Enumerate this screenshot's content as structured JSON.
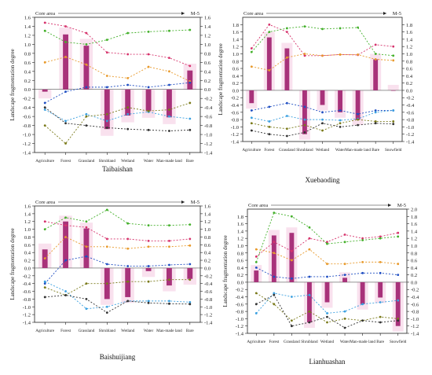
{
  "chart_data": [
    {
      "type": "bar",
      "title": "Taibaishan",
      "ylabel": "Landscape fragmentation degree",
      "corner_left": "Core area",
      "corner_right": "M-5",
      "ylim": [
        -1.4,
        1.6
      ],
      "yticks": [
        -1.4,
        -1.2,
        -1.0,
        -0.8,
        -0.6,
        -0.4,
        -0.2,
        0.0,
        0.2,
        0.4,
        0.6,
        0.8,
        1.0,
        1.2,
        1.4,
        1.6
      ],
      "right_ylim": [
        -1.4,
        1.6
      ],
      "right_yticks": [
        -1.4,
        -1.2,
        -1.0,
        -0.8,
        -0.6,
        -0.4,
        -0.2,
        0.0,
        0.2,
        0.4,
        0.6,
        0.8,
        1.0,
        1.2,
        1.4,
        1.6
      ],
      "categories": [
        "Agriculture",
        "Forest",
        "Grassland",
        "Shrubland",
        "Wetland",
        "Water",
        "Man-made land",
        "Bare"
      ],
      "values": [
        -0.05,
        1.22,
        0.97,
        -0.88,
        -0.58,
        -0.48,
        -0.62,
        0.42
      ],
      "lines": [
        {
          "color": "#d6336c",
          "values": [
            1.48,
            1.4,
            1.25,
            0.82,
            0.78,
            0.78,
            0.7,
            0.52
          ]
        },
        {
          "color": "#43b02a",
          "values": [
            1.3,
            1.05,
            1.0,
            1.1,
            1.25,
            1.28,
            1.3,
            1.32
          ]
        },
        {
          "color": "#e89a2c",
          "values": [
            0.6,
            0.72,
            0.55,
            0.3,
            0.25,
            0.5,
            0.4,
            0.18
          ]
        },
        {
          "color": "#1f4ec2",
          "values": [
            -0.3,
            -0.05,
            0.05,
            0.05,
            0.1,
            0.05,
            0.1,
            0.15
          ]
        },
        {
          "color": "#3aa0e0",
          "values": [
            -0.45,
            -0.7,
            -0.55,
            -0.7,
            -0.55,
            -0.5,
            -0.6,
            -0.65
          ]
        },
        {
          "color": "#7a7a1a",
          "values": [
            -0.8,
            -1.2,
            -0.6,
            -0.55,
            -0.4,
            -0.48,
            -0.45,
            -0.3
          ]
        },
        {
          "color": "#333333",
          "values": [
            -0.4,
            -0.75,
            -0.8,
            -0.85,
            -0.88,
            -0.9,
            -0.92,
            -0.9
          ]
        }
      ]
    },
    {
      "type": "bar",
      "title": "Xuebaoding",
      "ylabel": "Landscape fragmentation degree",
      "corner_left": "Core area",
      "corner_right": "M-5",
      "ylim": [
        -1.4,
        2.0
      ],
      "yticks": [
        -1.4,
        -1.2,
        -1.0,
        -0.8,
        -0.6,
        -0.4,
        -0.2,
        0.0,
        0.2,
        0.4,
        0.6,
        0.8,
        1.0,
        1.2,
        1.4,
        1.6,
        1.8
      ],
      "right_ylim": [
        -1.4,
        2.0
      ],
      "right_yticks": [
        -1.4,
        -1.2,
        -1.0,
        -0.8,
        -0.6,
        -0.4,
        -0.2,
        0.0,
        0.2,
        0.4,
        0.6,
        0.8,
        1.0,
        1.2,
        1.4,
        1.6,
        1.8
      ],
      "categories": [
        "Agriculture",
        "Forest",
        "Grassland",
        "Shrubland",
        "Wetland",
        "Water",
        "Man-made land",
        "Bare",
        "Snowfield"
      ],
      "values": [
        -0.35,
        1.45,
        1.15,
        -1.2,
        -0.4,
        -0.6,
        -0.8,
        0.85,
        0.0
      ],
      "lines": [
        {
          "color": "#d6336c",
          "values": [
            1.15,
            1.8,
            1.6,
            0.95,
            0.95,
            0.98,
            0.97,
            1.25,
            1.2
          ]
        },
        {
          "color": "#43b02a",
          "values": [
            1.05,
            1.6,
            1.7,
            1.75,
            1.68,
            1.7,
            1.72,
            1.0,
            0.95
          ]
        },
        {
          "color": "#e89a2c",
          "values": [
            0.65,
            0.55,
            0.9,
            1.0,
            0.95,
            0.98,
            0.98,
            0.85,
            0.82
          ]
        },
        {
          "color": "#1f4ec2",
          "values": [
            -0.55,
            -0.45,
            -0.35,
            -0.45,
            -0.6,
            -0.55,
            -0.65,
            -0.55,
            -0.55
          ]
        },
        {
          "color": "#3aa0e0",
          "values": [
            -0.75,
            -0.85,
            -0.7,
            -0.8,
            -0.8,
            -0.82,
            -0.78,
            -0.6,
            -0.55
          ]
        },
        {
          "color": "#7a7a1a",
          "values": [
            -0.9,
            -1.0,
            -1.05,
            -0.95,
            -1.1,
            -0.9,
            -0.8,
            -0.85,
            -0.85
          ]
        },
        {
          "color": "#333333",
          "values": [
            -1.1,
            -1.2,
            -1.25,
            -1.15,
            -0.9,
            -1.0,
            -0.95,
            -0.9,
            -0.92
          ]
        }
      ]
    },
    {
      "type": "bar",
      "title": "Baishuijiang",
      "ylabel": "Landscape fragmentation degree",
      "corner_left": "Core area",
      "corner_right": "M-5",
      "ylim": [
        -1.4,
        1.6
      ],
      "yticks": [
        -1.4,
        -1.2,
        -1.0,
        -0.8,
        -0.6,
        -0.4,
        -0.2,
        0.0,
        0.2,
        0.4,
        0.6,
        0.8,
        1.0,
        1.2,
        1.4,
        1.6
      ],
      "right_ylim": [
        -1.4,
        1.6
      ],
      "right_yticks": [
        -1.4,
        -1.2,
        -1.0,
        -0.8,
        -0.6,
        -0.4,
        -0.2,
        0.0,
        0.2,
        0.4,
        0.6,
        0.8,
        1.0,
        1.2,
        1.4,
        1.6
      ],
      "categories": [
        "Agriculture",
        "Forest",
        "Grassland",
        "Shrubland",
        "Wetland",
        "Water",
        "Man-made land",
        "Bare"
      ],
      "values": [
        0.48,
        1.2,
        1.02,
        -0.8,
        -0.75,
        -0.08,
        -0.45,
        -0.28
      ],
      "lines": [
        {
          "color": "#d6336c",
          "values": [
            1.2,
            1.1,
            1.05,
            0.75,
            0.75,
            0.7,
            0.7,
            0.75
          ]
        },
        {
          "color": "#43b02a",
          "values": [
            1.0,
            1.3,
            1.2,
            1.5,
            1.15,
            1.1,
            1.1,
            1.12
          ]
        },
        {
          "color": "#e89a2c",
          "values": [
            0.25,
            0.8,
            0.55,
            0.55,
            0.5,
            0.55,
            0.55,
            0.58
          ]
        },
        {
          "color": "#1f4ec2",
          "values": [
            -0.4,
            0.2,
            0.3,
            0.1,
            0.05,
            0.05,
            0.08,
            0.1
          ]
        },
        {
          "color": "#3aa0e0",
          "values": [
            -0.35,
            -0.6,
            -1.05,
            -1.0,
            -0.85,
            -0.85,
            -0.85,
            -0.88
          ]
        },
        {
          "color": "#7a7a1a",
          "values": [
            -0.5,
            -0.7,
            -0.4,
            -0.4,
            -0.35,
            -0.35,
            -0.3,
            -0.3
          ]
        },
        {
          "color": "#333333",
          "values": [
            -0.75,
            -0.7,
            -0.8,
            -1.15,
            -0.85,
            -0.9,
            -0.92,
            -0.93
          ]
        }
      ]
    },
    {
      "type": "bar",
      "title": "Lianhuashan",
      "ylabel": "Landscape fragmentation degree",
      "corner_left": "Core area",
      "corner_right": "M-5",
      "ylim": [
        -1.4,
        2.0
      ],
      "yticks": [
        -1.4,
        -1.2,
        -1.0,
        -0.8,
        -0.6,
        -0.4,
        -0.2,
        0.0,
        0.2,
        0.4,
        0.6,
        0.8,
        1.0,
        1.2,
        1.4,
        1.6,
        1.8
      ],
      "right_ylim": [
        -1.4,
        2.0
      ],
      "right_yticks": [
        -1.4,
        -1.2,
        -1.0,
        -0.8,
        -0.6,
        -0.4,
        -0.2,
        0.0,
        0.2,
        0.4,
        0.6,
        0.8,
        1.0,
        1.2,
        1.4,
        1.6,
        1.8,
        2.0
      ],
      "categories": [
        "Agriculture",
        "Forest",
        "Grassland",
        "Shrubland",
        "Wetland",
        "Water",
        "Man-made land",
        "Bare",
        "Snowfield"
      ],
      "values": [
        0.32,
        1.28,
        1.35,
        -1.1,
        -0.55,
        0.12,
        -0.6,
        -0.42,
        -1.2
      ],
      "lines": [
        {
          "color": "#d6336c",
          "values": [
            0.7,
            1.1,
            0.85,
            1.2,
            1.1,
            1.3,
            1.2,
            1.25,
            1.35
          ]
        },
        {
          "color": "#43b02a",
          "values": [
            0.55,
            1.9,
            1.8,
            1.5,
            1.05,
            1.1,
            1.15,
            1.2,
            1.25
          ]
        },
        {
          "color": "#e89a2c",
          "values": [
            0.9,
            0.8,
            0.6,
            0.9,
            0.5,
            0.5,
            0.55,
            0.55,
            0.5
          ]
        },
        {
          "color": "#1f4ec2",
          "values": [
            0.4,
            0.15,
            0.1,
            0.15,
            0.15,
            0.2,
            0.25,
            0.25,
            0.2
          ]
        },
        {
          "color": "#3aa0e0",
          "values": [
            -0.85,
            -0.3,
            -0.4,
            -0.35,
            -0.85,
            -0.8,
            -0.6,
            -0.55,
            -0.5
          ]
        },
        {
          "color": "#7a7a1a",
          "values": [
            -0.3,
            -0.6,
            -1.05,
            -0.8,
            -1.1,
            -1.0,
            -1.05,
            -0.95,
            -1.0
          ]
        },
        {
          "color": "#333333",
          "values": [
            -0.6,
            -0.35,
            -1.2,
            -1.1,
            -0.95,
            -1.25,
            -1.05,
            -1.1,
            -1.05
          ]
        }
      ]
    }
  ]
}
